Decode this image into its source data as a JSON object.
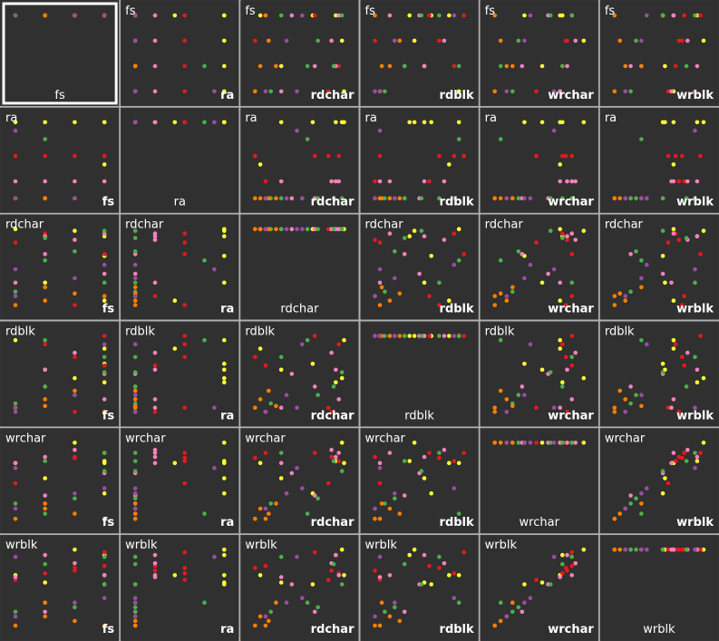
{
  "chart_data": {
    "type": "scatter",
    "variables": [
      "fs",
      "ra",
      "rdchar",
      "rdblk",
      "wrchar",
      "wrblk"
    ],
    "selected": "fs",
    "colors": {
      "yellow": "#ffff33",
      "red": "#e41a1c",
      "pink": "#f781bf",
      "green": "#4daf4a",
      "orange": "#ff7f00",
      "purple": "#984ea3"
    },
    "points": [
      {
        "c": "yellow",
        "fs": 4,
        "ra": 1,
        "rdchar": 0.6,
        "rdblk": 0.62,
        "wrchar": 0.3,
        "wrblk": 0.5
      },
      {
        "c": "yellow",
        "fs": 4,
        "ra": 1,
        "rdchar": 0.82,
        "rdblk": 0.4,
        "wrchar": 0.62,
        "wrblk": 0.82
      },
      {
        "c": "yellow",
        "fs": 3,
        "ra": 1,
        "rdchar": 0.88,
        "rdblk": 0.45,
        "wrchar": 0.8,
        "wrblk": 0.88
      },
      {
        "c": "yellow",
        "fs": 2,
        "ra": 1,
        "rdchar": 0.3,
        "rdblk": 0.55,
        "wrchar": 0.45,
        "wrblk": 0.52
      },
      {
        "c": "yellow",
        "fs": 1,
        "ra": 1,
        "rdchar": 0.9,
        "rdblk": 0.9,
        "wrchar": 0.6,
        "wrblk": 0.6
      },
      {
        "c": "yellow",
        "fs": 4,
        "ra": 0.5,
        "rdchar": 0.1,
        "rdblk": 0.8,
        "wrchar": 0.6,
        "wrblk": 0.6
      },
      {
        "c": "red",
        "fs": 4,
        "ra": 0.6,
        "rdchar": 0.62,
        "rdblk": 0.95,
        "wrchar": 0.7,
        "wrblk": 0.85
      },
      {
        "c": "red",
        "fs": 3,
        "ra": 0.6,
        "rdchar": 0.05,
        "rdblk": 0.7,
        "wrchar": 0.65,
        "wrblk": 0.68
      },
      {
        "c": "red",
        "fs": 2,
        "ra": 0.6,
        "rdchar": 0.85,
        "rdblk": 0.85,
        "wrchar": 0.62,
        "wrblk": 0.62
      },
      {
        "c": "red",
        "fs": 1,
        "ra": 0.6,
        "rdchar": 0.75,
        "rdblk": 0.1,
        "wrchar": 0.4,
        "wrblk": 0.55
      },
      {
        "c": "red",
        "fs": 4,
        "ra": 0.3,
        "rdchar": 0.15,
        "rdblk": 0.6,
        "wrchar": 0.7,
        "wrblk": 0.7
      },
      {
        "c": "red",
        "fs": 3,
        "ra": 0.3,
        "rdchar": 0.78,
        "rdblk": 0.05,
        "wrchar": 0.66,
        "wrblk": 0.65
      },
      {
        "c": "pink",
        "fs": 4,
        "ra": 0.3,
        "rdchar": 0.85,
        "rdblk": 0.2,
        "wrchar": 0.7,
        "wrblk": 0.6
      },
      {
        "c": "pink",
        "fs": 3,
        "ra": 0.3,
        "rdchar": 0.78,
        "rdblk": 0.75,
        "wrchar": 0.73,
        "wrblk": 0.73
      },
      {
        "c": "pink",
        "fs": 2,
        "ra": 0.3,
        "rdchar": 0.82,
        "rdblk": 0.55,
        "wrchar": 0.66,
        "wrblk": 0.82
      },
      {
        "c": "pink",
        "fs": 1,
        "ra": 0.3,
        "rdchar": 0.3,
        "rdblk": 0.1,
        "wrchar": 0.6,
        "wrblk": 0.58
      },
      {
        "c": "pink",
        "fs": 4,
        "ra": 0.1,
        "rdchar": 0.4,
        "rdblk": 0.5,
        "wrchar": 0.5,
        "wrblk": 0.5
      },
      {
        "c": "pink",
        "fs": 2,
        "ra": 0.1,
        "rdchar": 0.62,
        "rdblk": 0.35,
        "wrchar": 0.28,
        "wrblk": 0.2
      },
      {
        "c": "green",
        "fs": 4,
        "ra": 0.1,
        "rdchar": 0.88,
        "rdblk": 0.52,
        "wrchar": 0.52,
        "wrblk": 0.5
      },
      {
        "c": "green",
        "fs": 3,
        "ra": 0.1,
        "rdchar": 0.65,
        "rdblk": 0.25,
        "wrchar": 0.25,
        "wrblk": 0.25
      },
      {
        "c": "green",
        "fs": 2,
        "ra": 0.1,
        "rdchar": 0.8,
        "rdblk": 0.35,
        "wrchar": 0.62,
        "wrblk": 0.72
      },
      {
        "c": "green",
        "fs": 1,
        "ra": 0.1,
        "rdchar": 0.2,
        "rdblk": 0.15,
        "wrchar": 0.2,
        "wrblk": 0.2
      },
      {
        "c": "green",
        "fs": 2,
        "ra": 0.8,
        "rdchar": 0.55,
        "rdblk": 0.9,
        "wrchar": 0.1,
        "wrblk": 0.3
      },
      {
        "c": "green",
        "fs": 4,
        "ra": 0.1,
        "rdchar": 0.3,
        "rdblk": 0.7,
        "wrchar": 0.7,
        "wrblk": 0.8
      },
      {
        "c": "orange",
        "fs": 4,
        "ra": 0.1,
        "rdchar": 0.15,
        "rdblk": 0.05,
        "wrchar": 0.05,
        "wrblk": 0.05
      },
      {
        "c": "orange",
        "fs": 3,
        "ra": 0.1,
        "rdchar": 0.18,
        "rdblk": 0.3,
        "wrchar": 0.1,
        "wrblk": 0.1
      },
      {
        "c": "orange",
        "fs": 2,
        "ra": 0.1,
        "rdchar": 0.1,
        "rdblk": 0.2,
        "wrchar": 0.15,
        "wrblk": 0.15
      },
      {
        "c": "orange",
        "fs": 1,
        "ra": 0.1,
        "rdchar": 0.05,
        "rdblk": 0.1,
        "wrchar": 0.05,
        "wrblk": 0.05
      },
      {
        "c": "orange",
        "fs": 2,
        "ra": 0.1,
        "rdchar": 0.25,
        "rdblk": 0.12,
        "wrchar": 0.2,
        "wrblk": 0.3
      },
      {
        "c": "purple",
        "fs": 4,
        "ra": 0.1,
        "rdchar": 0.5,
        "rdblk": 0.85,
        "wrchar": 0.35,
        "wrblk": 0.35
      },
      {
        "c": "purple",
        "fs": 3,
        "ra": 0.1,
        "rdchar": 0.35,
        "rdblk": 0.25,
        "wrchar": 0.3,
        "wrblk": 0.3
      },
      {
        "c": "purple",
        "fs": 1,
        "ra": 0.9,
        "rdchar": 0.45,
        "rdblk": 0.1,
        "wrchar": 0.55,
        "wrblk": 0.8
      },
      {
        "c": "purple",
        "fs": 1,
        "ra": 0.1,
        "rdchar": 0.15,
        "rdblk": 0.05,
        "wrchar": 0.15,
        "wrblk": 0.15
      }
    ]
  }
}
